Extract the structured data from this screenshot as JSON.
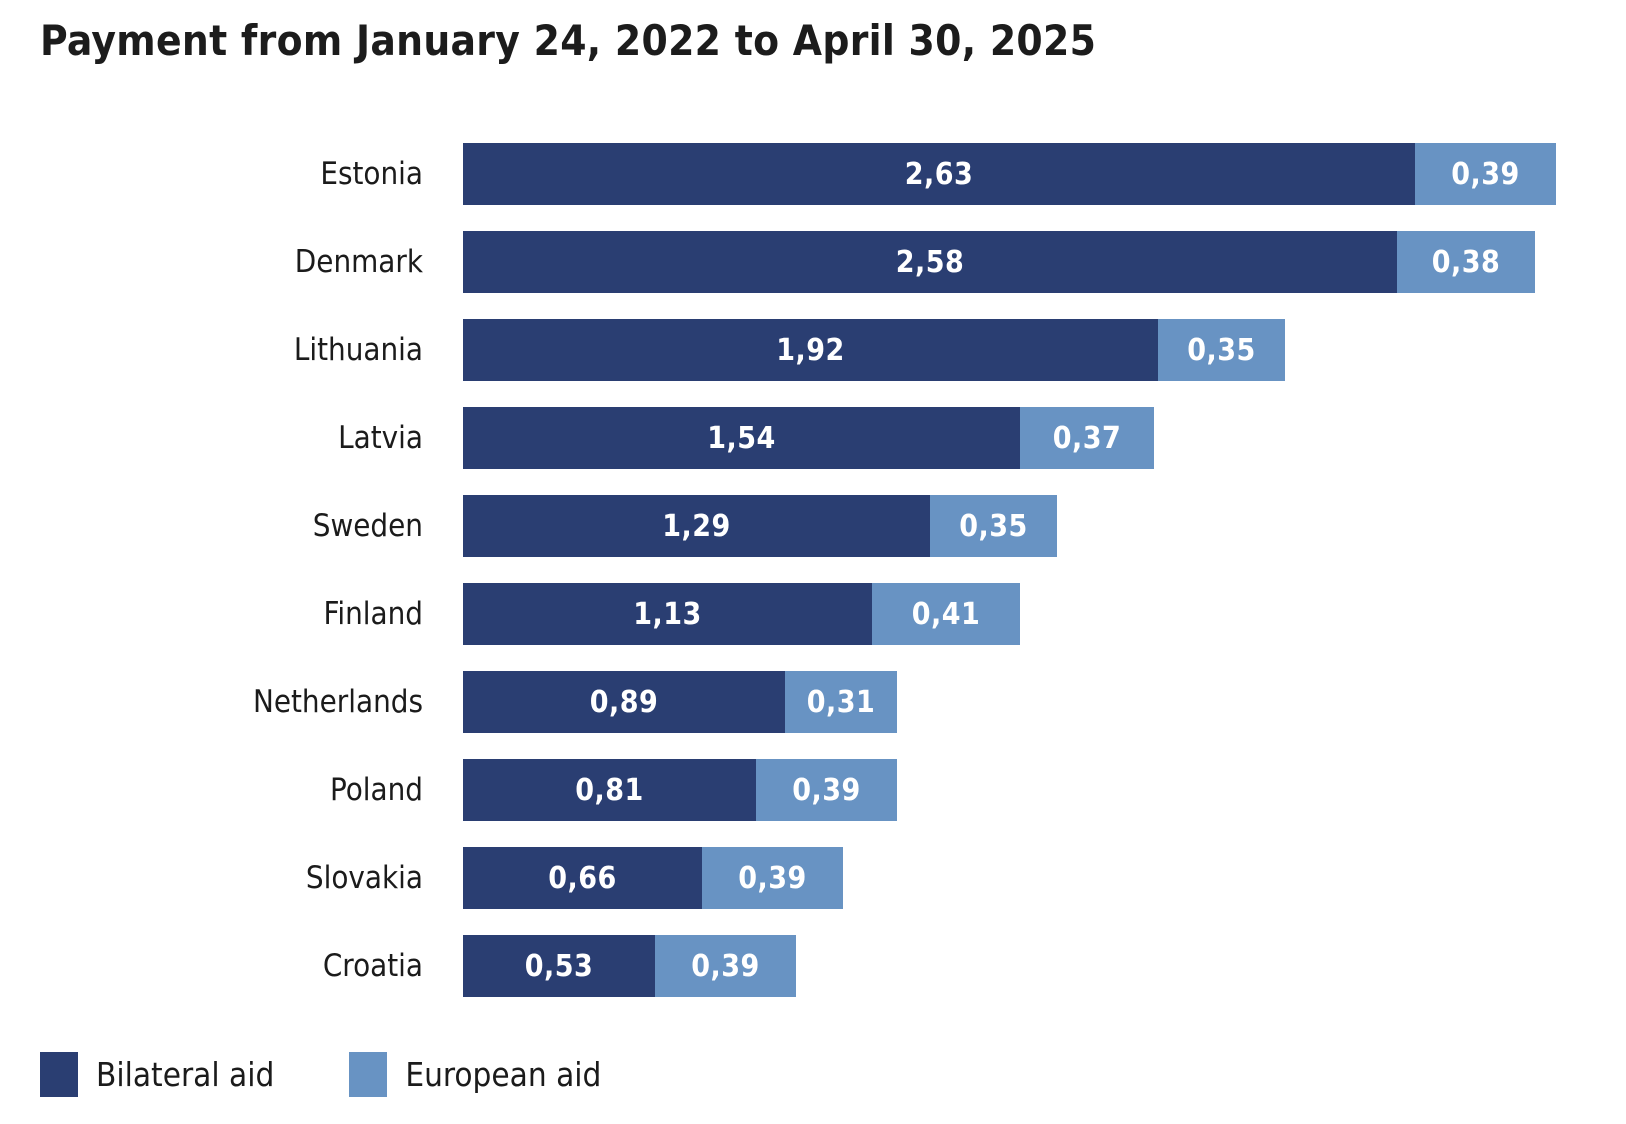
{
  "title": "Payment from January 24, 2022 to April 30, 2025",
  "colors": {
    "bilateral_aid": "#2A3E72",
    "european_aid": "#6893C3",
    "label_text": "#1C1C1C",
    "value_text": "#FFFFFF",
    "background": "#FFFFFF"
  },
  "chart_data": {
    "type": "bar",
    "orientation": "horizontal",
    "stacked": true,
    "title": "Payment from January 24, 2022 to April 30, 2025",
    "categories": [
      "Estonia",
      "Denmark",
      "Lithuania",
      "Latvia",
      "Sweden",
      "Finland",
      "Netherlands",
      "Poland",
      "Slovakia",
      "Croatia"
    ],
    "series": [
      {
        "name": "Bilateral aid",
        "color": "#2A3E72",
        "values": [
          2.63,
          2.58,
          1.92,
          1.54,
          1.29,
          1.13,
          0.89,
          0.81,
          0.66,
          0.53
        ],
        "labels": [
          "2,63",
          "2,58",
          "1,92",
          "1,54",
          "1,29",
          "1,13",
          "0,89",
          "0,81",
          "0,66",
          "0,53"
        ]
      },
      {
        "name": "European aid",
        "color": "#6893C3",
        "values": [
          0.39,
          0.38,
          0.35,
          0.37,
          0.35,
          0.41,
          0.31,
          0.39,
          0.39,
          0.39
        ],
        "labels": [
          "0,39",
          "0,38",
          "0,35",
          "0,37",
          "0,35",
          "0,41",
          "0,31",
          "0,39",
          "0,39",
          "0,39"
        ]
      }
    ],
    "value_decimal_separator": ",",
    "xlim": [
      0,
      3.02
    ],
    "grid": false,
    "value_axis_visible": false,
    "legend_position": "bottom-left",
    "bar_value_labels": "inside-center"
  }
}
